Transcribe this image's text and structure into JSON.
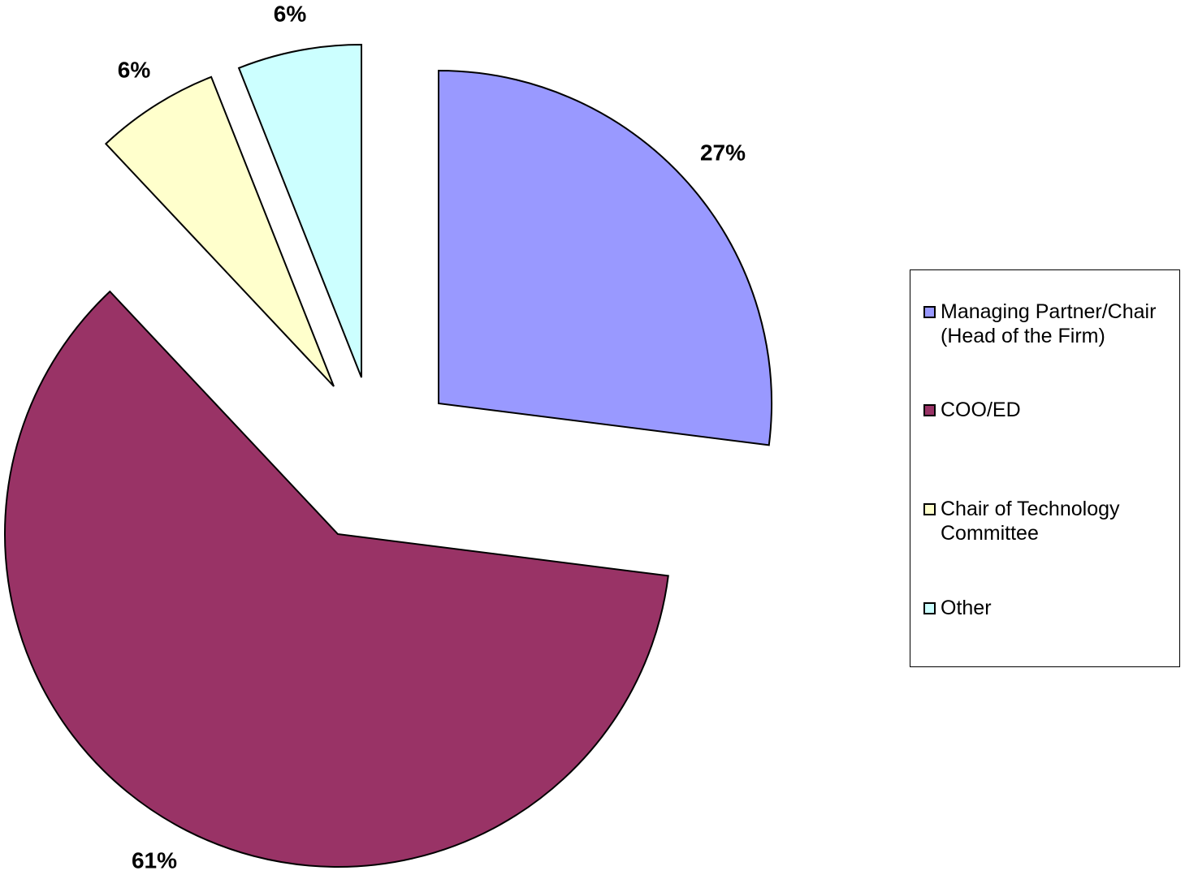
{
  "chart_data": {
    "type": "pie",
    "categories": [
      "Managing Partner/Chair (Head of the Firm)",
      "COO/ED",
      "Chair of Technology Committee",
      "Other"
    ],
    "values": [
      27,
      61,
      6,
      6
    ],
    "data_labels": [
      "27%",
      "61%",
      "6%",
      "6%"
    ],
    "colors": [
      "#9999ff",
      "#993366",
      "#ffffcc",
      "#ccffff"
    ],
    "exploded": true,
    "start_angle": "12 o'clock, clockwise",
    "legend_position": "right",
    "title": ""
  },
  "legend": {
    "items": [
      {
        "label": "Managing Partner/Chair (Head of the Firm)",
        "color": "#9999ff"
      },
      {
        "label": "COO/ED",
        "color": "#993366"
      },
      {
        "label": "Chair of Technology Committee",
        "color": "#ffffcc"
      },
      {
        "label": "Other",
        "color": "#ccffff"
      }
    ]
  }
}
